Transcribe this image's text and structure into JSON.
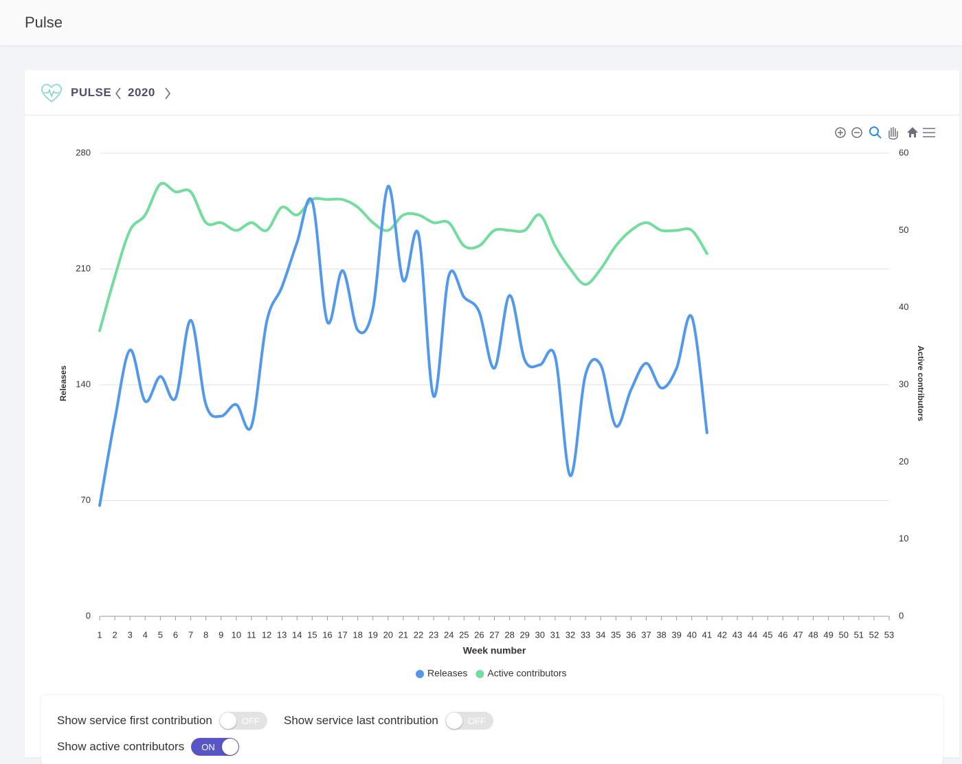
{
  "header": {
    "title": "Pulse"
  },
  "card": {
    "title": "PULSE",
    "year": "2020"
  },
  "chart_data": {
    "type": "line",
    "categories": [
      "1",
      "2",
      "3",
      "4",
      "5",
      "6",
      "7",
      "8",
      "9",
      "10",
      "11",
      "12",
      "13",
      "14",
      "15",
      "16",
      "17",
      "18",
      "19",
      "20",
      "21",
      "22",
      "23",
      "24",
      "25",
      "26",
      "27",
      "28",
      "29",
      "30",
      "31",
      "32",
      "33",
      "34",
      "35",
      "36",
      "37",
      "38",
      "39",
      "40",
      "41",
      "42",
      "43",
      "44",
      "45",
      "46",
      "47",
      "48",
      "49",
      "50",
      "51",
      "52",
      "53"
    ],
    "xlabel": "Week number",
    "ylabel": "Releases",
    "y2label": "Active contributors",
    "ylim": [
      0,
      280
    ],
    "yticks": [
      0,
      70,
      140,
      210,
      280
    ],
    "y2lim": [
      0,
      60
    ],
    "y2ticks": [
      0,
      10,
      20,
      30,
      40,
      50,
      60
    ],
    "grid": true,
    "legend": "bottom",
    "series": [
      {
        "name": "Releases",
        "color": "#5299ec",
        "values": [
          67,
          119,
          161,
          130,
          145,
          132,
          179,
          128,
          121,
          128,
          115,
          178,
          199,
          226,
          251,
          178,
          209,
          173,
          186,
          260,
          203,
          231,
          133,
          206,
          193,
          184,
          150,
          194,
          155,
          152,
          157,
          85,
          146,
          152,
          115,
          137,
          153,
          138,
          150,
          181,
          111,
          null,
          null,
          null,
          null,
          null,
          null,
          null,
          null,
          null,
          null,
          null,
          null
        ]
      },
      {
        "name": "Active contributors",
        "color": "#72dd9c",
        "axis": "y2",
        "values": [
          37,
          44,
          50,
          52,
          56,
          55,
          55,
          51,
          51,
          50,
          51,
          50,
          53,
          52,
          54,
          54,
          54,
          53,
          51,
          50,
          52,
          52,
          51,
          51,
          48,
          48,
          50,
          50,
          50,
          52,
          48,
          45,
          43,
          45,
          48,
          50,
          51,
          50,
          50,
          50,
          47,
          null,
          null,
          null,
          null,
          null,
          null,
          null,
          null,
          null,
          null,
          null,
          null
        ]
      }
    ]
  },
  "controls": [
    {
      "label": "Show service first contribution",
      "state": "OFF"
    },
    {
      "label": "Show service last contribution",
      "state": "OFF"
    },
    {
      "label": "Show active contributors",
      "state": "ON"
    }
  ]
}
